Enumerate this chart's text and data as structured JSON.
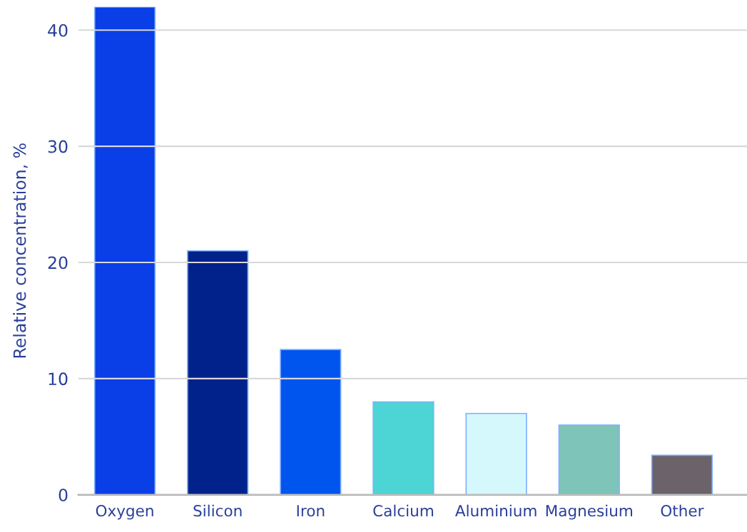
{
  "chart_data": {
    "type": "bar",
    "ylabel": "Relative concentration, %",
    "categories": [
      "Oxygen",
      "Silicon",
      "Iron",
      "Calcium",
      "Aluminium",
      "Magnesium",
      "Other"
    ],
    "values": [
      42,
      21,
      12.5,
      8,
      7,
      6,
      3.4
    ],
    "colors": [
      "#0a3ee6",
      "#00228a",
      "#0055ee",
      "#4dd4d4",
      "#d4f8fc",
      "#7ec4b8",
      "#6b626a"
    ],
    "ylim": [
      0,
      42
    ],
    "yticks": [
      0,
      10,
      20,
      30,
      40
    ],
    "grid": "y"
  }
}
